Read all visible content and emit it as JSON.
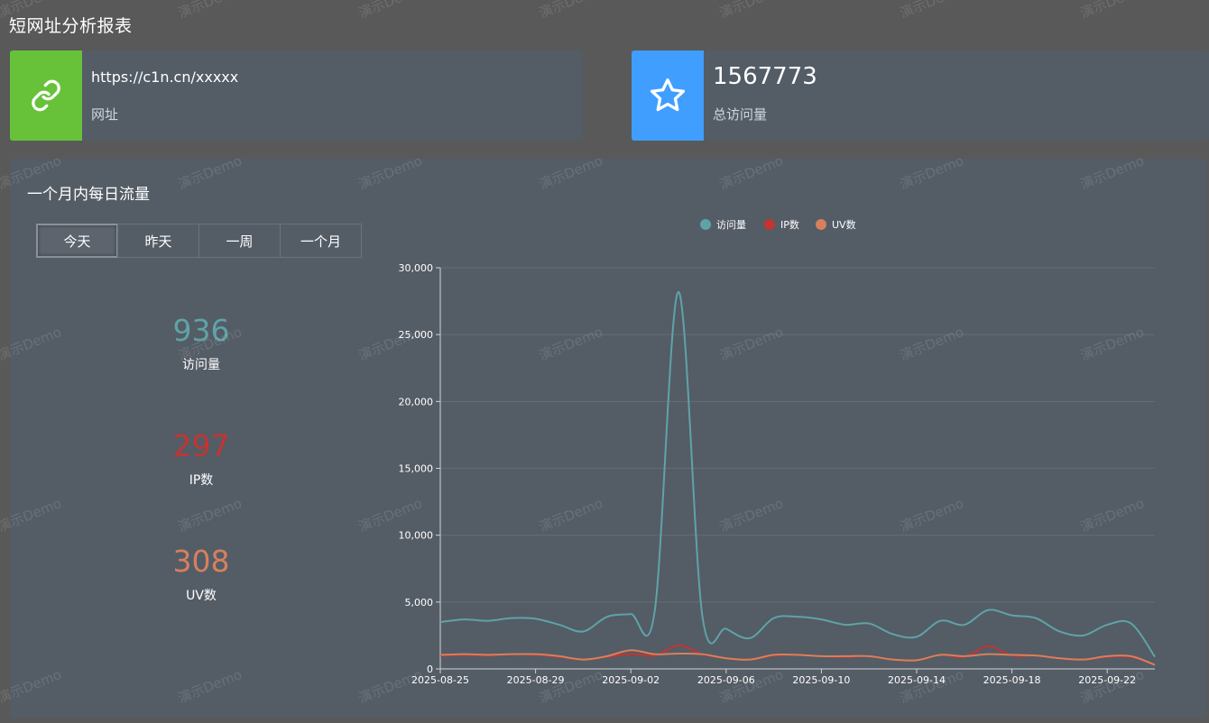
{
  "page_title": "短网址分析报表",
  "url_card": {
    "value": "https://c1n.cn/xxxxx",
    "label": "网址",
    "icon": "link-icon",
    "color": "#67c23a"
  },
  "visits_card": {
    "value": "1567773",
    "label": "总访问量",
    "icon": "star-icon",
    "color": "#409eff"
  },
  "panel": {
    "title": "一个月内每日流量",
    "tabs": [
      {
        "label": "今天",
        "active": true
      },
      {
        "label": "昨天",
        "active": false
      },
      {
        "label": "一周",
        "active": false
      },
      {
        "label": "一个月",
        "active": false
      }
    ],
    "stats": {
      "visits": {
        "value": "936",
        "label": "访问量",
        "color": "#5ea3a8"
      },
      "ip": {
        "value": "297",
        "label": "IP数",
        "color": "#c23531"
      },
      "uv": {
        "value": "308",
        "label": "UV数",
        "color": "#d6805d"
      }
    }
  },
  "watermark_text": "演示Demo",
  "chart_data": {
    "type": "line",
    "x": [
      "2025-08-25",
      "2025-08-26",
      "2025-08-27",
      "2025-08-28",
      "2025-08-29",
      "2025-08-30",
      "2025-08-31",
      "2025-09-01",
      "2025-09-02",
      "2025-09-03",
      "2025-09-04",
      "2025-09-05",
      "2025-09-06",
      "2025-09-07",
      "2025-09-08",
      "2025-09-09",
      "2025-09-10",
      "2025-09-11",
      "2025-09-12",
      "2025-09-13",
      "2025-09-14",
      "2025-09-15",
      "2025-09-16",
      "2025-09-17",
      "2025-09-18",
      "2025-09-19",
      "2025-09-20",
      "2025-09-21",
      "2025-09-22",
      "2025-09-23",
      "2025-09-24"
    ],
    "x_tick_labels": [
      "2025-08-25",
      "2025-08-29",
      "2025-09-02",
      "2025-09-06",
      "2025-09-10",
      "2025-09-14",
      "2025-09-18",
      "2025-09-22"
    ],
    "series": [
      {
        "name": "访问量",
        "color": "#5ea3a8",
        "values": [
          3500,
          3700,
          3600,
          3800,
          3750,
          3300,
          2800,
          3900,
          4100,
          4300,
          28200,
          4000,
          3000,
          2300,
          3800,
          3900,
          3700,
          3300,
          3400,
          2600,
          2400,
          3600,
          3300,
          4400,
          4000,
          3800,
          2800,
          2500,
          3300,
          3400,
          900
        ]
      },
      {
        "name": "IP数",
        "color": "#c23531",
        "values": [
          1000,
          1050,
          1000,
          1100,
          1050,
          900,
          700,
          900,
          1100,
          1000,
          1750,
          1100,
          800,
          700,
          1000,
          1050,
          950,
          900,
          950,
          700,
          650,
          1050,
          900,
          1700,
          1000,
          1000,
          800,
          700,
          900,
          900,
          300
        ]
      },
      {
        "name": "UV数",
        "color": "#d6805d",
        "values": [
          1050,
          1100,
          1050,
          1100,
          1100,
          950,
          700,
          950,
          1400,
          1100,
          1150,
          1100,
          800,
          700,
          1050,
          1050,
          950,
          950,
          950,
          700,
          650,
          1050,
          950,
          1100,
          1050,
          1000,
          800,
          700,
          950,
          950,
          300
        ]
      }
    ],
    "y_ticks": [
      "0",
      "5,000",
      "10,000",
      "15,000",
      "20,000",
      "25,000",
      "30,000"
    ],
    "ylim": [
      0,
      30000
    ],
    "grid": true,
    "legend_position": "top-center"
  }
}
